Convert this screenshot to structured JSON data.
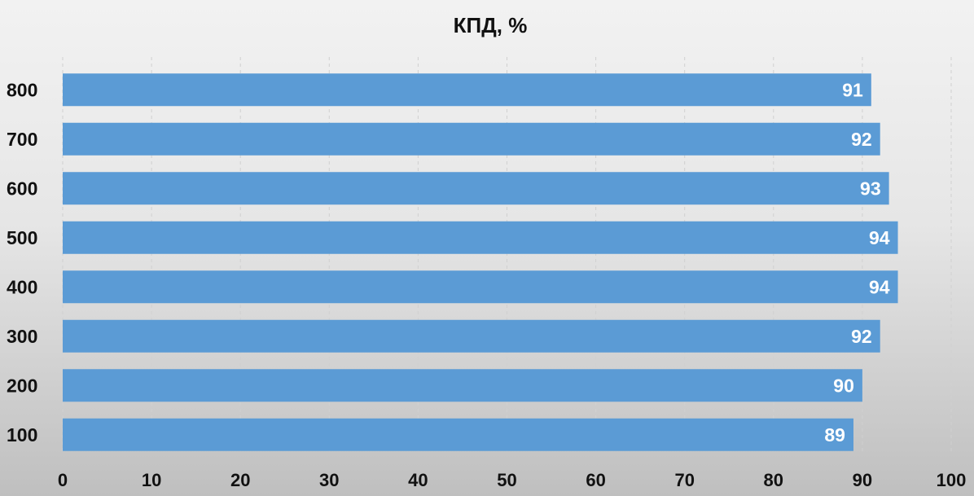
{
  "chart_data": {
    "type": "bar",
    "orientation": "horizontal",
    "title": "КПД, %",
    "categories": [
      "800",
      "700",
      "600",
      "500",
      "400",
      "300",
      "200",
      "100"
    ],
    "values": [
      91,
      92,
      93,
      94,
      94,
      92,
      90,
      89
    ],
    "xlim": [
      0,
      100
    ],
    "xticks": [
      "0",
      "10",
      "20",
      "30",
      "40",
      "50",
      "60",
      "70",
      "80",
      "90",
      "100"
    ],
    "grid": "vertical-dashed",
    "bar_color": "#5b9bd5",
    "data_label_color": "#ffffff"
  }
}
